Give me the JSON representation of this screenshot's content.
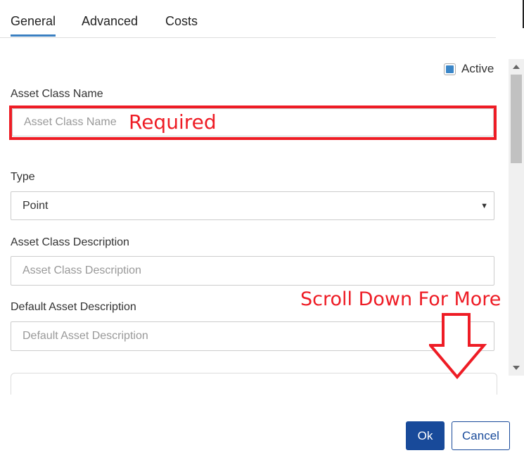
{
  "tabs": [
    {
      "label": "General",
      "active": true
    },
    {
      "label": "Advanced",
      "active": false
    },
    {
      "label": "Costs",
      "active": false
    }
  ],
  "active_checkbox": {
    "label": "Active",
    "checked": true
  },
  "fields": {
    "name": {
      "label": "Asset Class Name",
      "placeholder": "Asset Class Name",
      "value": ""
    },
    "type": {
      "label": "Type",
      "value": "Point"
    },
    "description": {
      "label": "Asset Class Description",
      "placeholder": "Asset Class Description",
      "value": ""
    },
    "default_description": {
      "label": "Default Asset Description",
      "placeholder": "Default Asset Description",
      "value": ""
    }
  },
  "annotations": {
    "required": "Required",
    "scroll_note": "Scroll Down For More",
    "color": "#ee1c25"
  },
  "buttons": {
    "ok": "Ok",
    "cancel": "Cancel"
  },
  "colors": {
    "accent": "#3a7fc1",
    "primary_button": "#184a9a"
  }
}
